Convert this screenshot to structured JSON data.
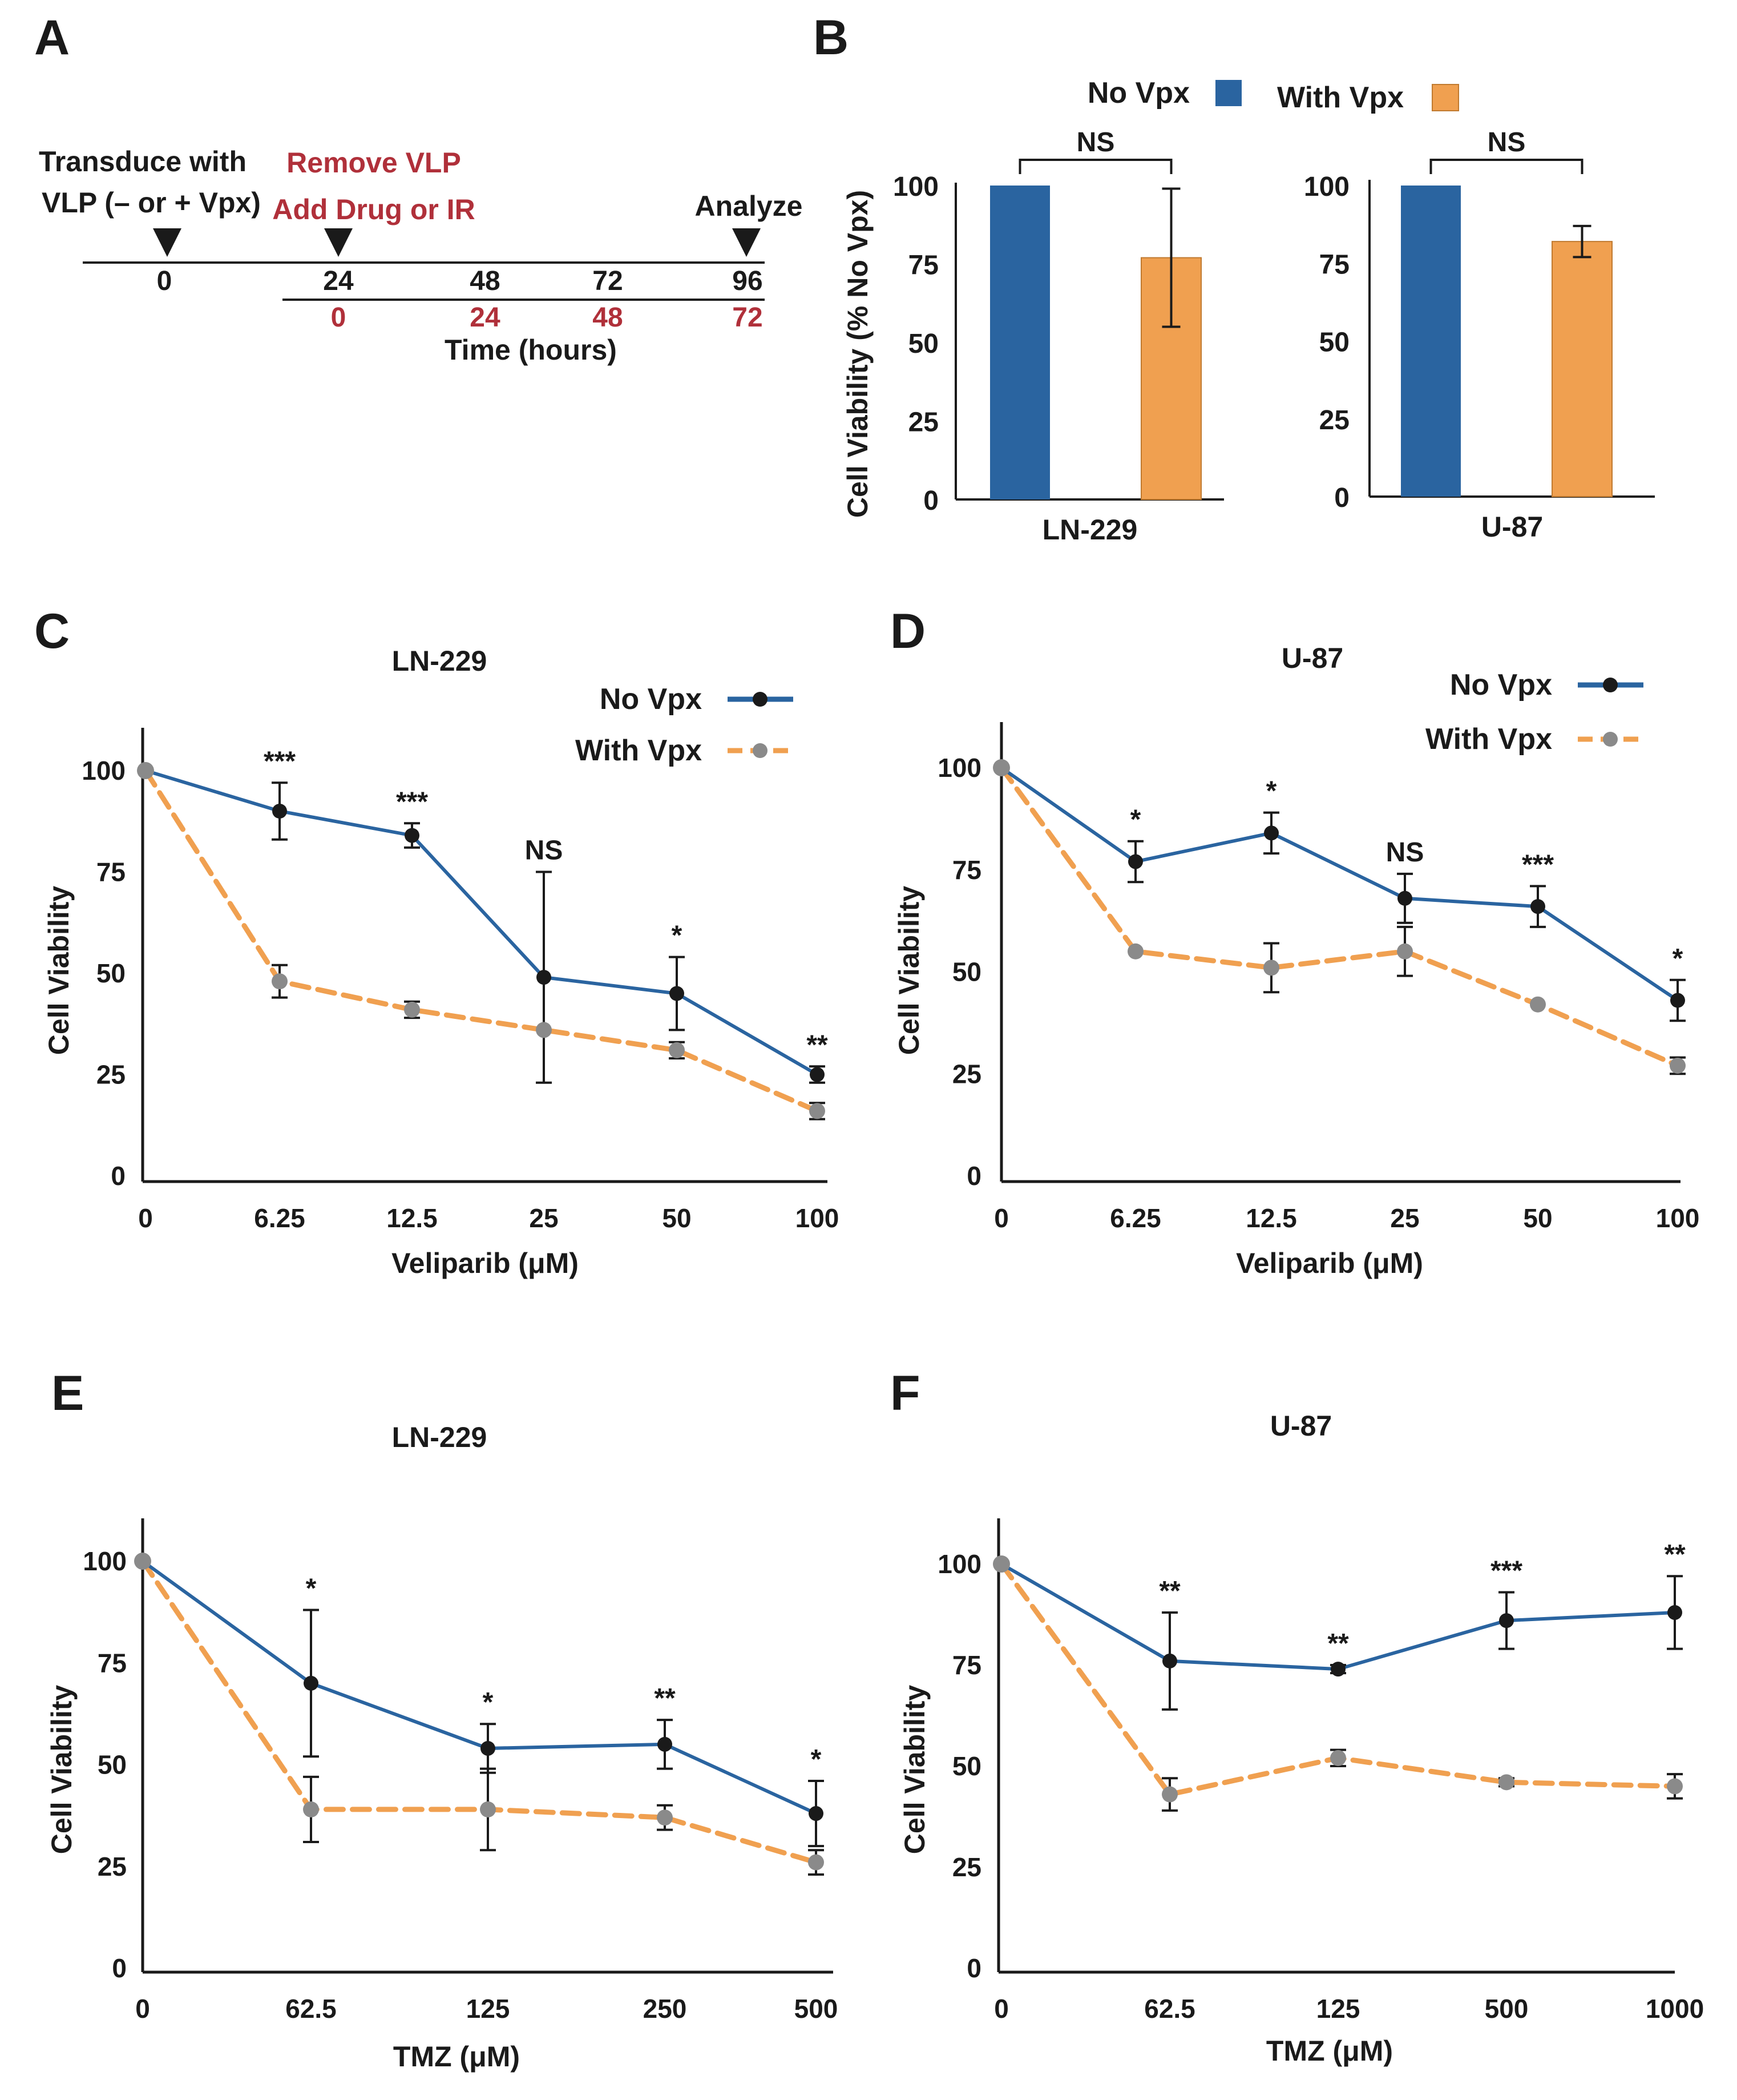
{
  "colors": {
    "no_vpx": "#2a64a0",
    "with_vpx": "#f0a050",
    "with_vpx_marker": "#8a8a8a",
    "text": "#1a1a1a",
    "red_text": "#b0303a"
  },
  "panel_letters": {
    "a": "A",
    "b": "B",
    "c": "C",
    "d": "D",
    "e": "E",
    "f": "F"
  },
  "timeline": {
    "step1_line1": "Transduce with",
    "step1_line2": "VLP (– or + Vpx)",
    "step2_line1": "Remove VLP",
    "step2_line2": "Add Drug or IR",
    "step3": "Analyze",
    "top_ticks": [
      "0",
      "24",
      "48",
      "72",
      "96"
    ],
    "bottom_ticks": [
      "0",
      "24",
      "48",
      "72"
    ],
    "xlabel": "Time (hours)"
  },
  "chart_data": [
    {
      "id": "B",
      "type": "bar",
      "legend": [
        "No Vpx",
        "With Vpx"
      ],
      "ylabel": "Cell Viability (% No Vpx)",
      "yticks": [
        "100",
        "75",
        "50",
        "25",
        "0"
      ],
      "ylim": [
        0,
        100
      ],
      "groups": [
        {
          "name": "LN-229",
          "values": [
            100,
            77
          ],
          "err": [
            0,
            22
          ],
          "sig": "NS"
        },
        {
          "name": "U-87",
          "values": [
            100,
            82
          ],
          "err": [
            0,
            5
          ],
          "sig": "NS"
        }
      ]
    },
    {
      "id": "C",
      "type": "line",
      "title": "LN-229",
      "xlabel": "Veliparib (μM)",
      "ylabel": "Cell Viability",
      "categories": [
        "0",
        "6.25",
        "12.5",
        "25",
        "50",
        "100"
      ],
      "yticks": [
        "100",
        "75",
        "50",
        "25",
        "0"
      ],
      "ylim": [
        0,
        110
      ],
      "legend": [
        "No Vpx",
        "With Vpx"
      ],
      "series": [
        {
          "name": "No Vpx",
          "values": [
            100,
            90,
            84,
            49,
            45,
            25
          ],
          "err": [
            0,
            7,
            3,
            26,
            9,
            2
          ]
        },
        {
          "name": "With Vpx",
          "values": [
            100,
            48,
            41,
            36,
            31,
            16
          ],
          "err": [
            0,
            4,
            2,
            0,
            2,
            2
          ]
        }
      ],
      "significance": [
        "",
        "***",
        "***",
        "NS",
        "*",
        "**"
      ]
    },
    {
      "id": "D",
      "type": "line",
      "title": "U-87",
      "xlabel": "Veliparib (μM)",
      "ylabel": "Cell Viability",
      "categories": [
        "0",
        "6.25",
        "12.5",
        "25",
        "50",
        "100"
      ],
      "yticks": [
        "100",
        "75",
        "50",
        "25",
        "0"
      ],
      "ylim": [
        0,
        110
      ],
      "legend": [
        "No Vpx",
        "With Vpx"
      ],
      "series": [
        {
          "name": "No Vpx",
          "values": [
            100,
            77,
            84,
            68,
            66,
            43
          ],
          "err": [
            0,
            5,
            5,
            6,
            5,
            5
          ]
        },
        {
          "name": "With Vpx",
          "values": [
            100,
            55,
            51,
            55,
            42,
            27
          ],
          "err": [
            0,
            0,
            6,
            6,
            0,
            2
          ]
        }
      ],
      "significance": [
        "",
        "*",
        "*",
        "NS",
        "***",
        "*"
      ]
    },
    {
      "id": "E",
      "type": "line",
      "title": "LN-229",
      "xlabel": "TMZ (μM)",
      "ylabel": "Cell Viability",
      "categories": [
        "0",
        "62.5",
        "125",
        "250",
        "500"
      ],
      "yticks": [
        "100",
        "75",
        "50",
        "25",
        "0"
      ],
      "ylim": [
        0,
        110
      ],
      "legend": [
        "No Vpx",
        "With Vpx"
      ],
      "series": [
        {
          "name": "No Vpx",
          "values": [
            100,
            70,
            54,
            55,
            38
          ],
          "err": [
            0,
            18,
            6,
            6,
            8
          ]
        },
        {
          "name": "With Vpx",
          "values": [
            100,
            39,
            39,
            37,
            26
          ],
          "err": [
            0,
            8,
            10,
            3,
            3
          ]
        }
      ],
      "significance": [
        "",
        "*",
        "*",
        "**",
        "*"
      ]
    },
    {
      "id": "F",
      "type": "line",
      "title": "U-87",
      "xlabel": "TMZ (μM)",
      "ylabel": "Cell Viability",
      "categories": [
        "0",
        "62.5",
        "125",
        "500",
        "1000"
      ],
      "yticks": [
        "100",
        "75",
        "50",
        "25",
        "0"
      ],
      "ylim": [
        0,
        110
      ],
      "legend": [
        "No Vpx",
        "With Vpx"
      ],
      "series": [
        {
          "name": "No Vpx",
          "values": [
            100,
            76,
            74,
            86,
            88
          ],
          "err": [
            0,
            12,
            1,
            7,
            9
          ]
        },
        {
          "name": "With Vpx",
          "values": [
            100,
            43,
            52,
            46,
            45
          ],
          "err": [
            0,
            4,
            2,
            1,
            3
          ]
        }
      ],
      "significance": [
        "",
        "**",
        "**",
        "***",
        "**"
      ]
    }
  ]
}
